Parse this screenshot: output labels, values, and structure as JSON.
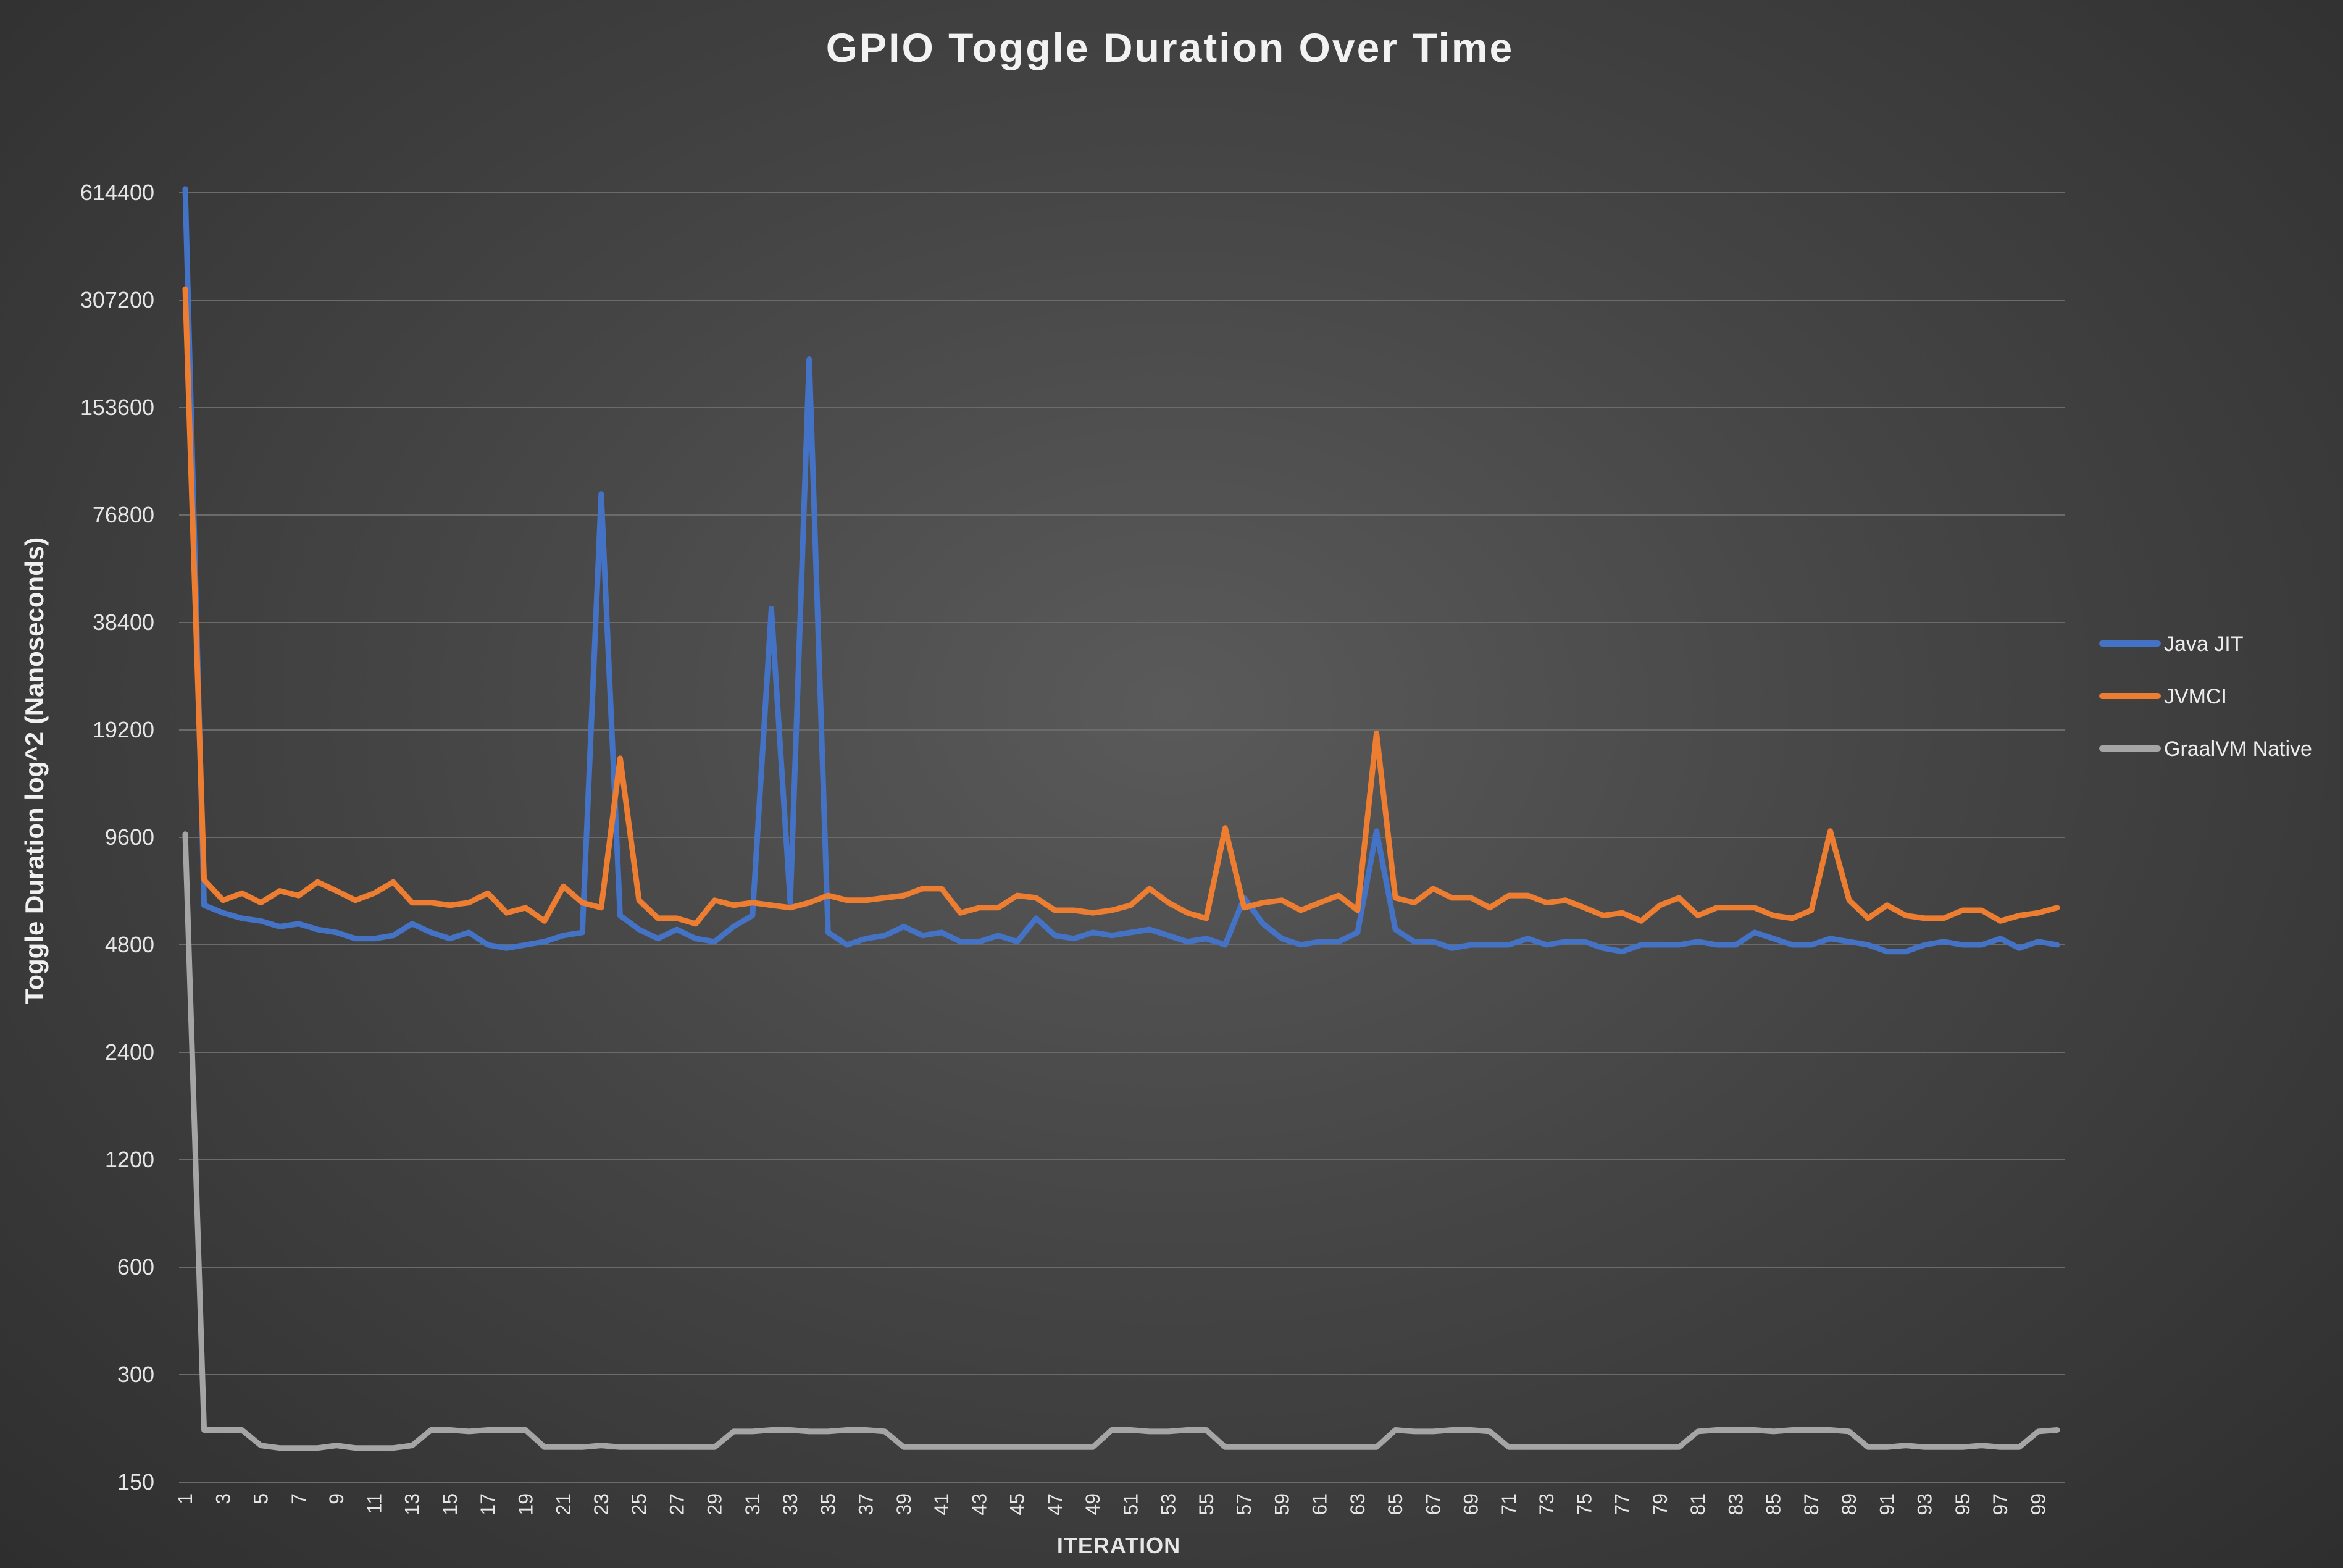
{
  "chart_data": {
    "type": "line",
    "title": "GPIO Toggle Duration Over Time",
    "xlabel": "ITERATION",
    "ylabel": "Toggle Duration log^2 (Nanoseconds)",
    "y_scale": "log2",
    "y_ticks": [
      150,
      300,
      600,
      1200,
      2400,
      4800,
      9600,
      19200,
      38400,
      76800,
      153600,
      307200,
      614400
    ],
    "ylim": [
      150,
      614400
    ],
    "x": [
      1,
      2,
      3,
      4,
      5,
      6,
      7,
      8,
      9,
      10,
      11,
      12,
      13,
      14,
      15,
      16,
      17,
      18,
      19,
      20,
      21,
      22,
      23,
      24,
      25,
      26,
      27,
      28,
      29,
      30,
      31,
      32,
      33,
      34,
      35,
      36,
      37,
      38,
      39,
      40,
      41,
      42,
      43,
      44,
      45,
      46,
      47,
      48,
      49,
      50,
      51,
      52,
      53,
      54,
      55,
      56,
      57,
      58,
      59,
      60,
      61,
      62,
      63,
      64,
      65,
      66,
      67,
      68,
      69,
      70,
      71,
      72,
      73,
      74,
      75,
      76,
      77,
      78,
      79,
      80,
      81,
      82,
      83,
      84,
      85,
      86,
      87,
      88,
      89,
      90,
      91,
      92,
      93,
      94,
      95,
      96,
      97,
      98,
      99,
      100
    ],
    "x_tick_labels": [
      "1",
      "3",
      "5",
      "7",
      "9",
      "11",
      "13",
      "15",
      "17",
      "19",
      "21",
      "23",
      "25",
      "27",
      "29",
      "31",
      "33",
      "35",
      "37",
      "39",
      "41",
      "43",
      "45",
      "47",
      "49",
      "51",
      "53",
      "55",
      "57",
      "59",
      "61",
      "63",
      "65",
      "67",
      "69",
      "71",
      "73",
      "75",
      "77",
      "79",
      "81",
      "83",
      "85",
      "87",
      "89",
      "91",
      "93",
      "95",
      "97",
      "99"
    ],
    "legend_position": "right",
    "grid": true,
    "series": [
      {
        "name": "Java JIT",
        "color": "#4472c4",
        "values": [
          630000,
          6200,
          5900,
          5700,
          5600,
          5400,
          5500,
          5300,
          5200,
          5000,
          5000,
          5100,
          5500,
          5200,
          5000,
          5200,
          4800,
          4700,
          4800,
          4900,
          5100,
          5200,
          88000,
          5800,
          5300,
          5000,
          5300,
          5000,
          4900,
          5400,
          5800,
          42000,
          6300,
          210000,
          5200,
          4800,
          5000,
          5100,
          5400,
          5100,
          5200,
          4900,
          4900,
          5100,
          4900,
          5700,
          5100,
          5000,
          5200,
          5100,
          5200,
          5300,
          5100,
          4900,
          5000,
          4800,
          6500,
          5500,
          5000,
          4800,
          4900,
          4900,
          5200,
          10000,
          5300,
          4900,
          4900,
          4700,
          4800,
          4800,
          4800,
          5000,
          4800,
          4900,
          4900,
          4700,
          4600,
          4800,
          4800,
          4800,
          4900,
          4800,
          4800,
          5200,
          5000,
          4800,
          4800,
          5000,
          4900,
          4800,
          4600,
          4600,
          4800,
          4900,
          4800,
          4800,
          5000,
          4700,
          4900,
          4800
        ]
      },
      {
        "name": "JVMCI",
        "color": "#ed7d31",
        "values": [
          330000,
          7300,
          6400,
          6700,
          6300,
          6800,
          6600,
          7200,
          6800,
          6400,
          6700,
          7200,
          6300,
          6300,
          6200,
          6300,
          6700,
          5900,
          6100,
          5600,
          7000,
          6300,
          6100,
          16000,
          6400,
          5700,
          5700,
          5500,
          6400,
          6200,
          6300,
          6200,
          6100,
          6300,
          6600,
          6400,
          6400,
          6500,
          6600,
          6900,
          6900,
          5900,
          6100,
          6100,
          6600,
          6500,
          6000,
          6000,
          5900,
          6000,
          6200,
          6900,
          6300,
          5900,
          5700,
          10200,
          6100,
          6300,
          6400,
          6000,
          6300,
          6600,
          6000,
          18800,
          6500,
          6300,
          6900,
          6500,
          6500,
          6100,
          6600,
          6600,
          6300,
          6400,
          6100,
          5800,
          5900,
          5600,
          6200,
          6500,
          5800,
          6100,
          6100,
          6100,
          5800,
          5700,
          6000,
          10000,
          6400,
          5700,
          6200,
          5800,
          5700,
          5700,
          6000,
          6000,
          5600,
          5800,
          5900,
          6100
        ]
      },
      {
        "name": "GraalVM Native",
        "color": "#a5a5a5",
        "values": [
          9800,
          210,
          210,
          210,
          190,
          187,
          187,
          187,
          190,
          187,
          187,
          187,
          190,
          210,
          210,
          208,
          210,
          210,
          210,
          188,
          188,
          188,
          190,
          188,
          188,
          188,
          188,
          188,
          188,
          208,
          208,
          210,
          210,
          208,
          208,
          210,
          210,
          208,
          188,
          188,
          188,
          188,
          188,
          188,
          188,
          188,
          188,
          188,
          188,
          210,
          210,
          208,
          208,
          210,
          210,
          188,
          188,
          188,
          188,
          188,
          188,
          188,
          188,
          188,
          210,
          208,
          208,
          210,
          210,
          208,
          188,
          188,
          188,
          188,
          188,
          188,
          188,
          188,
          188,
          188,
          208,
          210,
          210,
          210,
          208,
          210,
          210,
          210,
          208,
          188,
          188,
          190,
          188,
          188,
          188,
          190,
          188,
          188,
          208,
          210
        ]
      }
    ]
  }
}
